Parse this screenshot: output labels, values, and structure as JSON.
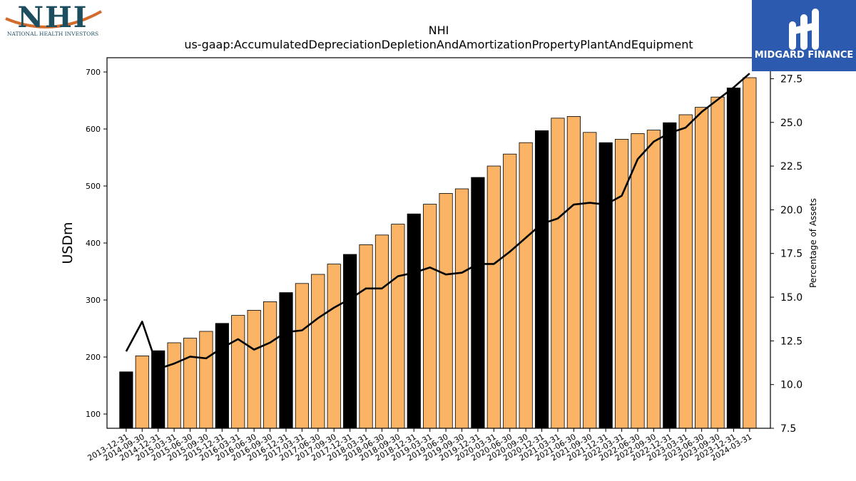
{
  "logos": {
    "left": {
      "acronym": "NHI",
      "caption": "NATIONAL HEALTH INVESTORS"
    },
    "right": {
      "name": "MIDGARD FINANCE"
    }
  },
  "colors": {
    "bar_highlight": "#000000",
    "bar_default": "#fbb366",
    "line": "#000000",
    "brand_blue": "#2c5aae",
    "nhi_teal": "#1d4e5f",
    "nhi_orange": "#d26b2c"
  },
  "chart_data": {
    "type": "bar",
    "title": "NHI",
    "subtitle": "us-gaap:AccumulatedDepreciationDepletionAndAmortizationPropertyPlantAndEquipment",
    "ylabel": "USDm",
    "y2label": "Percentage of Assets",
    "ylim": [
      75,
      725
    ],
    "y2lim": [
      7.5,
      28.7
    ],
    "yticks": [
      100,
      200,
      300,
      400,
      500,
      600,
      700
    ],
    "y2ticks": [
      "7.5",
      "10.0",
      "12.5",
      "15.0",
      "17.5",
      "20.0",
      "22.5",
      "25.0",
      "27.5"
    ],
    "categories": [
      "2013-12-31",
      "2014-09-30",
      "2014-12-31",
      "2015-03-31",
      "2015-06-30",
      "2015-09-30",
      "2015-12-31",
      "2016-03-31",
      "2016-06-30",
      "2016-09-30",
      "2016-12-31",
      "2017-03-31",
      "2017-06-30",
      "2017-09-30",
      "2017-12-31",
      "2018-03-31",
      "2018-06-30",
      "2018-09-30",
      "2018-12-31",
      "2019-03-31",
      "2019-06-30",
      "2019-09-30",
      "2019-12-31",
      "2020-03-31",
      "2020-06-30",
      "2020-09-30",
      "2020-12-31",
      "2021-03-31",
      "2021-06-30",
      "2021-09-30",
      "2021-12-31",
      "2022-03-31",
      "2022-06-30",
      "2022-09-30",
      "2022-12-31",
      "2023-03-31",
      "2023-06-30",
      "2023-09-30",
      "2023-12-31",
      "2024-03-31"
    ],
    "series": [
      {
        "values": [
          174,
          202,
          211,
          225,
          233,
          245,
          259,
          273,
          282,
          297,
          313,
          329,
          345,
          363,
          380,
          397,
          414,
          433,
          451,
          468,
          487,
          495,
          515,
          535,
          556,
          576,
          597,
          619,
          622,
          594,
          576,
          582,
          592,
          598,
          611,
          625,
          638,
          656,
          672,
          690
        ],
        "highlight": [
          true,
          false,
          true,
          false,
          false,
          false,
          true,
          false,
          false,
          false,
          true,
          false,
          false,
          false,
          true,
          false,
          false,
          false,
          true,
          false,
          false,
          false,
          true,
          false,
          false,
          false,
          true,
          false,
          false,
          false,
          true,
          false,
          false,
          false,
          true,
          false,
          false,
          false,
          true,
          false
        ]
      },
      {
        "axis": "right",
        "values": [
          11.9,
          13.6,
          10.9,
          11.2,
          11.6,
          11.5,
          12.1,
          12.6,
          12.0,
          12.4,
          13.0,
          13.1,
          13.8,
          14.4,
          14.9,
          15.5,
          15.5,
          16.2,
          16.4,
          16.7,
          16.3,
          16.4,
          16.9,
          16.9,
          17.6,
          18.4,
          19.2,
          19.5,
          20.3,
          20.4,
          20.3,
          20.8,
          22.9,
          23.9,
          24.4,
          24.7,
          25.6,
          26.3,
          27.0,
          27.8
        ]
      }
    ]
  }
}
